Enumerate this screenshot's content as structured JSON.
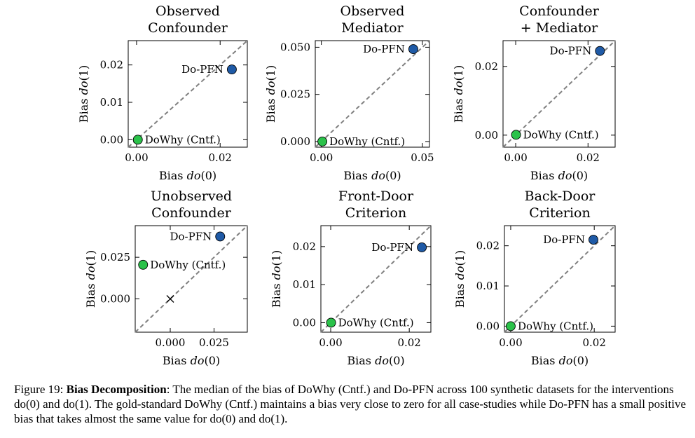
{
  "figure": {
    "number_label": "Figure 19:",
    "bold_title": "Bias Decomposition",
    "caption_rest": ": The median of the bias of DoWhy (Cntf.) and Do-PFN across 100 synthetic datasets for the interventions do(0) and do(1). The gold-standard DoWhy (Cntf.) maintains a bias very close to zero for all case-studies while Do-PFN has a small positive bias that takes almost the same value for do(0) and do(1)."
  },
  "colors": {
    "do_pfn": "#1f5aa6",
    "dowhy": "#2bc24a",
    "diagonal": "#808080"
  },
  "chart_data": [
    {
      "type": "scatter",
      "title_lines": [
        "Observed",
        "Confounder"
      ],
      "xlabel": "Bias do(0)",
      "ylabel": "Bias do(1)",
      "xlim": [
        -0.002,
        0.0265
      ],
      "ylim": [
        -0.002,
        0.0265
      ],
      "xticks": [
        {
          "v": 0.0,
          "label": "0.00"
        },
        {
          "v": 0.02,
          "label": "0.02"
        }
      ],
      "yticks": [
        {
          "v": 0.0,
          "label": "0.00"
        },
        {
          "v": 0.01,
          "label": "0.01"
        },
        {
          "v": 0.02,
          "label": "0.02"
        }
      ],
      "series": [
        {
          "name": "Do-PFN",
          "x": 0.0228,
          "y": 0.0188,
          "label": "Do-PFN",
          "label_side": "left"
        },
        {
          "name": "DoWhy (Cntf.)",
          "x": 0.0003,
          "y": 0.0,
          "label": "DoWhy (Cntf.)",
          "label_side": "right"
        }
      ],
      "origin_marker": false
    },
    {
      "type": "scatter",
      "title_lines": [
        "Observed",
        "Mediator"
      ],
      "xlabel": "Bias do(0)",
      "ylabel": "Bias do(1)",
      "xlim": [
        -0.003,
        0.0535
      ],
      "ylim": [
        -0.003,
        0.0535
      ],
      "xticks": [
        {
          "v": 0.0,
          "label": "0.00"
        },
        {
          "v": 0.05,
          "label": "0.05"
        }
      ],
      "yticks": [
        {
          "v": 0.0,
          "label": "0.000"
        },
        {
          "v": 0.025,
          "label": "0.025"
        },
        {
          "v": 0.05,
          "label": "0.050"
        }
      ],
      "series": [
        {
          "name": "Do-PFN",
          "x": 0.0455,
          "y": 0.049,
          "label": "Do-PFN",
          "label_side": "left"
        },
        {
          "name": "DoWhy (Cntf.)",
          "x": 0.0005,
          "y": 0.0,
          "label": "DoWhy (Cntf.)",
          "label_side": "right"
        }
      ],
      "origin_marker": false
    },
    {
      "type": "scatter",
      "title_lines": [
        "Confounder",
        "+ Mediator"
      ],
      "xlabel": "Bias do(0)",
      "ylabel": "Bias do(1)",
      "xlim": [
        -0.0035,
        0.0275
      ],
      "ylim": [
        -0.0035,
        0.0275
      ],
      "xticks": [
        {
          "v": 0.0,
          "label": "0.00"
        },
        {
          "v": 0.02,
          "label": "0.02"
        }
      ],
      "yticks": [
        {
          "v": 0.0,
          "label": "0.00"
        },
        {
          "v": 0.02,
          "label": "0.02"
        }
      ],
      "series": [
        {
          "name": "Do-PFN",
          "x": 0.0233,
          "y": 0.0245,
          "label": "Do-PFN",
          "label_side": "left"
        },
        {
          "name": "DoWhy (Cntf.)",
          "x": 0.0001,
          "y": 0.0001,
          "label": "DoWhy (Cntf.)",
          "label_side": "right"
        }
      ],
      "origin_marker": false
    },
    {
      "type": "scatter",
      "title_lines": [
        "Unobserved",
        "Confounder"
      ],
      "xlabel": "Bias do(0)",
      "ylabel": "Bias do(1)",
      "xlim": [
        -0.02,
        0.044
      ],
      "ylim": [
        -0.02,
        0.044
      ],
      "xticks": [
        {
          "v": 0.0,
          "label": "0.000"
        },
        {
          "v": 0.025,
          "label": "0.025"
        }
      ],
      "yticks": [
        {
          "v": 0.0,
          "label": "0.000"
        },
        {
          "v": 0.025,
          "label": "0.025"
        }
      ],
      "series": [
        {
          "name": "Do-PFN",
          "x": 0.0285,
          "y": 0.0375,
          "label": "Do-PFN",
          "label_side": "left"
        },
        {
          "name": "DoWhy (Cntf.)",
          "x": -0.0155,
          "y": 0.0205,
          "label": "DoWhy (Cntf.)",
          "label_side": "right"
        }
      ],
      "origin_marker": true
    },
    {
      "type": "scatter",
      "title_lines": [
        "Front-Door",
        "Criterion"
      ],
      "xlabel": "Bias do(0)",
      "ylabel": "Bias do(1)",
      "xlim": [
        -0.0025,
        0.0255
      ],
      "ylim": [
        -0.0025,
        0.0255
      ],
      "xticks": [
        {
          "v": 0.0,
          "label": "0.00"
        },
        {
          "v": 0.02,
          "label": "0.02"
        }
      ],
      "yticks": [
        {
          "v": 0.0,
          "label": "0.00"
        },
        {
          "v": 0.01,
          "label": "0.01"
        },
        {
          "v": 0.02,
          "label": "0.02"
        }
      ],
      "series": [
        {
          "name": "Do-PFN",
          "x": 0.0232,
          "y": 0.0198,
          "label": "Do-PFN",
          "label_side": "left"
        },
        {
          "name": "DoWhy (Cntf.)",
          "x": 0.0001,
          "y": 0.0,
          "label": "DoWhy (Cntf.)",
          "label_side": "right"
        }
      ],
      "origin_marker": false
    },
    {
      "type": "scatter",
      "title_lines": [
        "Back-Door",
        "Criterion"
      ],
      "xlabel": "Bias do(0)",
      "ylabel": "Bias do(1)",
      "xlim": [
        -0.0015,
        0.025
      ],
      "ylim": [
        -0.0015,
        0.025
      ],
      "xticks": [
        {
          "v": 0.0,
          "label": "0.00"
        },
        {
          "v": 0.02,
          "label": "0.02"
        }
      ],
      "yticks": [
        {
          "v": 0.0,
          "label": "0.00"
        },
        {
          "v": 0.01,
          "label": "0.01"
        },
        {
          "v": 0.02,
          "label": "0.02"
        }
      ],
      "series": [
        {
          "name": "Do-PFN",
          "x": 0.0198,
          "y": 0.0215,
          "label": "Do-PFN",
          "label_side": "left"
        },
        {
          "name": "DoWhy (Cntf.)",
          "x": 0.0,
          "y": 0.0,
          "label": "DoWhy (Cntf.)",
          "label_side": "right"
        }
      ],
      "origin_marker": false
    }
  ]
}
